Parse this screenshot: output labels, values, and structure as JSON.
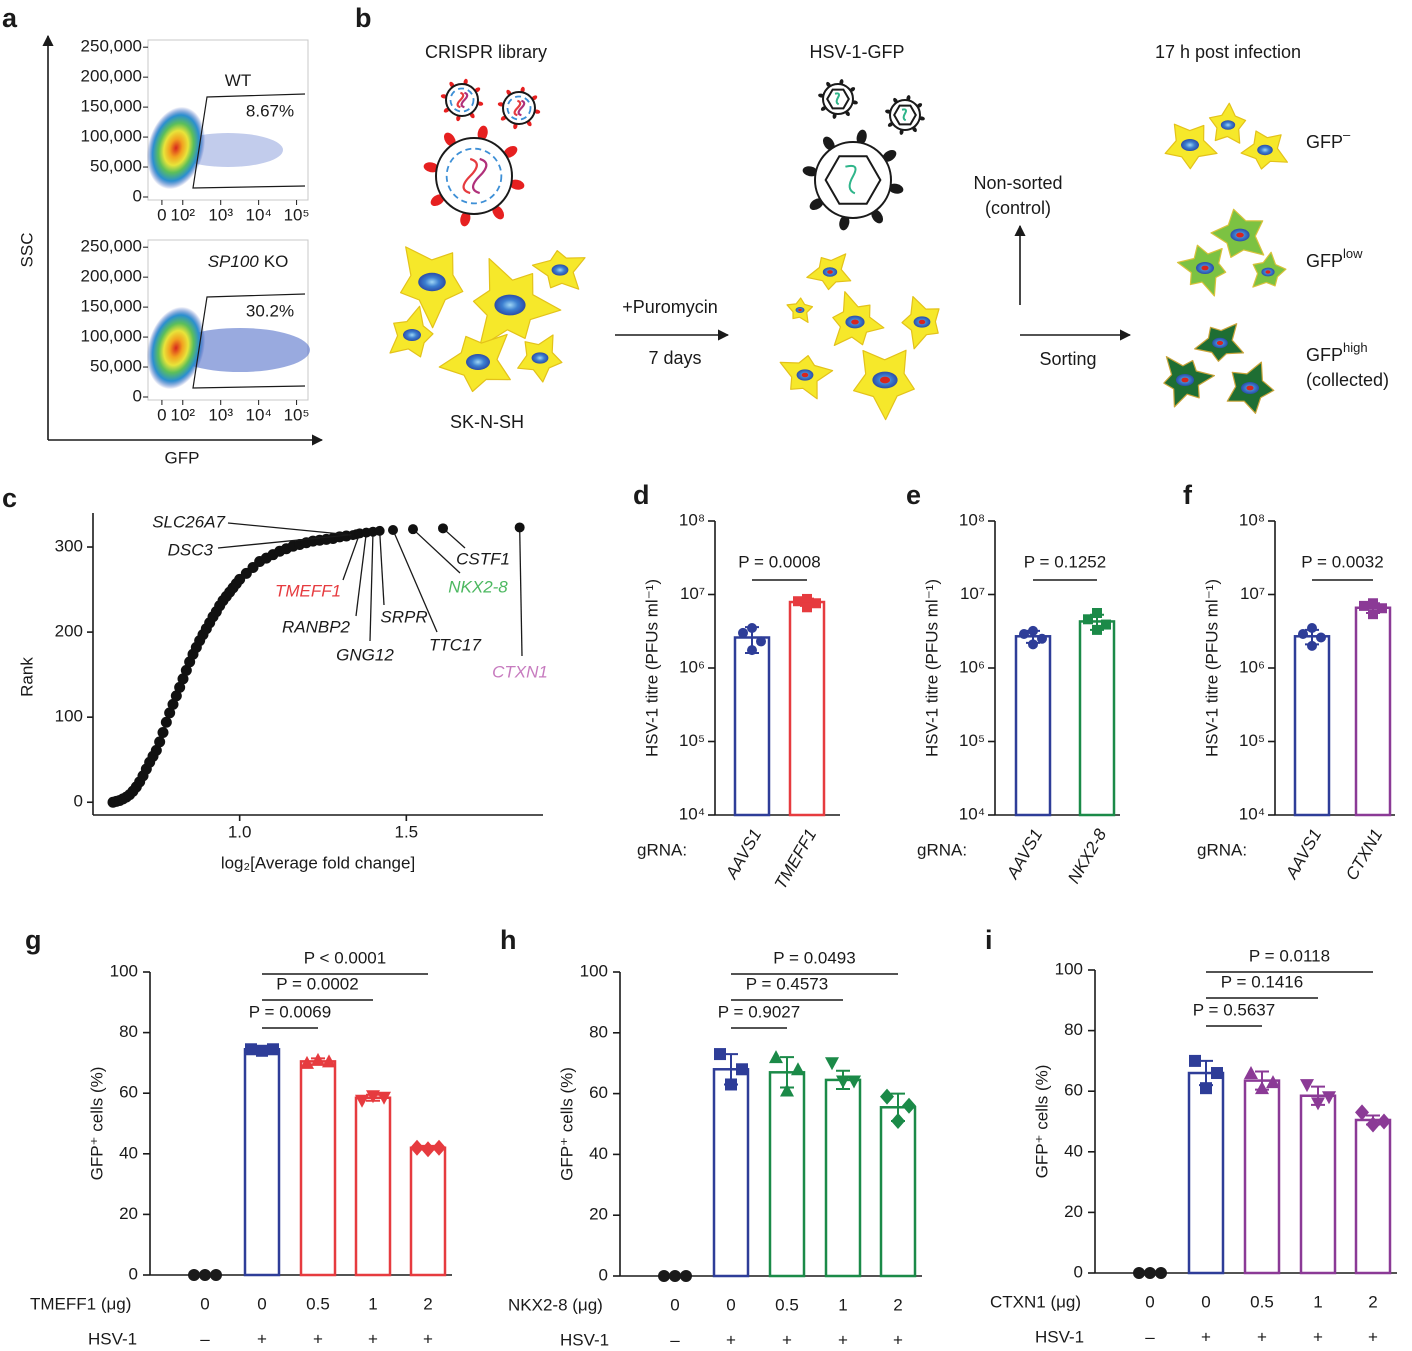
{
  "panel_labels": [
    "a",
    "b",
    "c",
    "d",
    "e",
    "f",
    "g",
    "h",
    "i"
  ],
  "schematic": {
    "steps": [
      "CRISPR library",
      "HSV-1-GFP",
      "17 h post infection"
    ],
    "cell_line": "SK-N-SH",
    "treatment": [
      "+Puromycin",
      "7 days"
    ],
    "control": [
      "Non-sorted",
      "(control)"
    ],
    "sorting": "Sorting",
    "populations": [
      {
        "base": "GFP",
        "sup": "–"
      },
      {
        "base": "GFP",
        "sup": "low"
      },
      {
        "base": "GFP",
        "sup": "high",
        "note": "(collected)"
      }
    ]
  },
  "chart_data": [
    {
      "type": "flow",
      "xlabel": "GFP",
      "ylabel": "SSC",
      "xscale": "biexponential",
      "xlim": [
        -22,
        200000
      ],
      "ylim": [
        -5000,
        262000
      ],
      "xticks": [
        0,
        {
          "value": 100,
          "label": "10²"
        },
        {
          "value": 1000,
          "label": "10³"
        },
        {
          "value": 10000,
          "label": "10⁴"
        },
        {
          "value": 100000,
          "label": "10⁵"
        }
      ],
      "yticks": [
        {
          "value": 250000,
          "label": "250,000"
        },
        {
          "value": 200000,
          "label": "200,000"
        },
        {
          "value": 150000,
          "label": "150,000"
        },
        {
          "value": 100000,
          "label": "100,000"
        },
        {
          "value": 50000,
          "label": "50,000"
        },
        0
      ],
      "plots": [
        {
          "gate_name": "WT",
          "gate_percent": "8.67%"
        },
        {
          "gate_gene": "SP100",
          "gate_name": "KO",
          "gate_percent": "30.2%"
        }
      ]
    },
    {
      "type": "rank",
      "xlabel": "log₂[Average fold change]",
      "ylabel": "Rank",
      "xlim": [
        0.56,
        1.91
      ],
      "ylim": [
        -15,
        340
      ],
      "xticks": [
        {
          "value": 1,
          "label": "1.0"
        },
        {
          "value": 1.5,
          "label": "1.5"
        }
      ],
      "yticks": [
        0,
        100,
        200,
        300
      ],
      "x": [
        0.62,
        0.63,
        0.64,
        0.65,
        0.66,
        0.67,
        0.68,
        0.69,
        0.7,
        0.71,
        0.72,
        0.73,
        0.74,
        0.75,
        0.76,
        0.77,
        0.78,
        0.79,
        0.8,
        0.81,
        0.82,
        0.83,
        0.84,
        0.85,
        0.86,
        0.87,
        0.88,
        0.89,
        0.9,
        0.91,
        0.92,
        0.93,
        0.94,
        0.95,
        0.96,
        0.97,
        0.98,
        0.99,
        1.0,
        1.02,
        1.04,
        1.06,
        1.08,
        1.1,
        1.12,
        1.14,
        1.16,
        1.18,
        1.2,
        1.22,
        1.24,
        1.26,
        1.28,
        1.3,
        1.32
      ],
      "values": [
        0,
        1,
        2,
        4,
        6,
        9,
        13,
        18,
        24,
        31,
        39,
        47,
        54,
        61,
        71,
        82,
        94,
        105,
        115,
        125,
        135,
        145,
        155,
        165,
        174,
        182,
        190,
        197,
        204,
        211,
        218,
        224,
        231,
        237,
        242,
        247,
        252,
        257,
        262,
        269,
        276,
        283,
        287,
        291,
        295,
        298,
        301,
        303,
        305,
        307,
        308,
        309,
        310,
        312,
        313
      ],
      "labeled_points": {
        "names": [
          "SLC26A7",
          "DSC3",
          "TMEFF1",
          "RANBP2",
          "GNG12",
          "SRPR",
          "TTC17",
          "NKX2-8",
          "CSTF1",
          "CTXN1"
        ],
        "x": [
          1.34,
          1.35,
          1.36,
          1.38,
          1.4,
          1.42,
          1.46,
          1.52,
          1.61,
          1.84
        ],
        "values": [
          314,
          315,
          316,
          317,
          318,
          319,
          320,
          321,
          322,
          323
        ],
        "colors": [
          "#1a1a1a",
          "#1a1a1a",
          "#e63b3f",
          "#1a1a1a",
          "#1a1a1a",
          "#1a1a1a",
          "#1a1a1a",
          "#4cb860",
          "#1a1a1a",
          "#c77bbf"
        ]
      }
    },
    {
      "type": "logbar",
      "ylabel": "HSV-1 titre (PFUs ml⁻¹)",
      "ylog": true,
      "ylim": [
        10000,
        100000000
      ],
      "yticks": [
        {
          "value": 10000,
          "label": "10⁴"
        },
        {
          "value": 100000,
          "label": "10⁵"
        },
        {
          "value": 1000000,
          "label": "10⁶"
        },
        {
          "value": 10000000,
          "label": "10⁷"
        },
        {
          "value": 100000000,
          "label": "10⁸"
        }
      ],
      "category_prefix": "gRNA:",
      "categories": [
        "AAVS1",
        "TMEFF1"
      ],
      "values": [
        2600000,
        7900000
      ],
      "errors": [
        1000000,
        900000
      ],
      "points": [
        [
          3500000,
          3000000,
          2300000,
          1750000
        ],
        [
          8700000,
          8100000,
          7600000,
          6700000
        ]
      ],
      "colors": [
        "#2e3d98",
        "#e63b3f"
      ],
      "pvalue_label": "P = 0.0008"
    },
    {
      "type": "logbar",
      "ylabel": "HSV-1 titre (PFUs ml⁻¹)",
      "ylog": true,
      "ylim": [
        10000,
        100000000
      ],
      "yticks": [
        {
          "value": 10000,
          "label": "10⁴"
        },
        {
          "value": 100000,
          "label": "10⁵"
        },
        {
          "value": 1000000,
          "label": "10⁶"
        },
        {
          "value": 10000000,
          "label": "10⁷"
        },
        {
          "value": 100000000,
          "label": "10⁸"
        }
      ],
      "category_prefix": "gRNA:",
      "categories": [
        "AAVS1",
        "NKX2-8"
      ],
      "values": [
        2700000,
        4300000
      ],
      "errors": [
        500000,
        1000000
      ],
      "points": [
        [
          3200000,
          2900000,
          2500000,
          2100000
        ],
        [
          5600000,
          4600000,
          3900000,
          3300000
        ]
      ],
      "colors": [
        "#2e3d98",
        "#1b8a48"
      ],
      "pvalue_label": "P = 0.1252"
    },
    {
      "type": "logbar",
      "ylabel": "HSV-1 titre (PFUs ml⁻¹)",
      "ylog": true,
      "ylim": [
        10000,
        100000000
      ],
      "yticks": [
        {
          "value": 10000,
          "label": "10⁴"
        },
        {
          "value": 100000,
          "label": "10⁵"
        },
        {
          "value": 1000000,
          "label": "10⁶"
        },
        {
          "value": 10000000,
          "label": "10⁷"
        },
        {
          "value": 100000000,
          "label": "10⁸"
        }
      ],
      "category_prefix": "gRNA:",
      "categories": [
        "AAVS1",
        "CTXN1"
      ],
      "values": [
        2700000,
        6600000
      ],
      "errors": [
        600000,
        1000000
      ],
      "points": [
        [
          3500000,
          2900000,
          2600000,
          2000000
        ],
        [
          7600000,
          7000000,
          6500000,
          5400000
        ]
      ],
      "colors": [
        "#2e3d98",
        "#8b3a96"
      ],
      "pvalue_label": "P = 0.0032"
    },
    {
      "type": "bar",
      "ylabel": "GFP⁺ cells (%)",
      "ylim": [
        0,
        100
      ],
      "yticks": [
        0,
        20,
        40,
        60,
        80,
        100
      ],
      "dose_label": "TMEFF1 (μg)",
      "categories": [
        "0",
        "0",
        "0.5",
        "1",
        "2"
      ],
      "infection_label": "HSV-1",
      "infection": [
        "–",
        "+",
        "+",
        "+",
        "+"
      ],
      "values": [
        0,
        74.5,
        70.5,
        58.5,
        42
      ],
      "errors": [
        0,
        0.8,
        1,
        1,
        0.6
      ],
      "points": [
        [
          0,
          0,
          0
        ],
        [
          74.5,
          74,
          74.5
        ],
        [
          70,
          71,
          70.5
        ],
        [
          57.5,
          59,
          58.5
        ],
        [
          42,
          41.5,
          42
        ]
      ],
      "colors": [
        "#1a1a1a",
        "#2e3d98",
        "#e63b3f",
        "#e63b3f",
        "#e63b3f"
      ],
      "markers": [
        "circle",
        "square",
        "triangle",
        "triangle-down",
        "diamond"
      ],
      "pvalue_labels": [
        null,
        null,
        "P = 0.0069",
        "P = 0.0002",
        "P < 0.0001"
      ]
    },
    {
      "type": "bar",
      "ylabel": "GFP⁺ cells (%)",
      "ylim": [
        0,
        100
      ],
      "yticks": [
        0,
        20,
        40,
        60,
        80,
        100
      ],
      "dose_label": "NKX2-8 (μg)",
      "categories": [
        "0",
        "0",
        "0.5",
        "1",
        "2"
      ],
      "infection_label": "HSV-1",
      "infection": [
        "–",
        "+",
        "+",
        "+",
        "+"
      ],
      "values": [
        0,
        68,
        67,
        64.5,
        55.5
      ],
      "errors": [
        0,
        5,
        5,
        3,
        4.5
      ],
      "points": [
        [
          0,
          0,
          0
        ],
        [
          73,
          63,
          68
        ],
        [
          72,
          61,
          68
        ],
        [
          70,
          64,
          64
        ],
        [
          59,
          51,
          56
        ]
      ],
      "colors": [
        "#1a1a1a",
        "#2e3d98",
        "#1b8a48",
        "#1b8a48",
        "#1b8a48"
      ],
      "markers": [
        "circle",
        "square",
        "triangle",
        "triangle-down",
        "diamond"
      ],
      "pvalue_labels": [
        null,
        null,
        "P = 0.9027",
        "P = 0.4573",
        "P = 0.0493"
      ]
    },
    {
      "type": "bar",
      "ylabel": "GFP⁺ cells (%)",
      "ylim": [
        0,
        100
      ],
      "yticks": [
        0,
        20,
        40,
        60,
        80,
        100
      ],
      "dose_label": "CTXN1 (μg)",
      "categories": [
        "0",
        "0",
        "0.5",
        "1",
        "2"
      ],
      "infection_label": "HSV-1",
      "infection": [
        "–",
        "+",
        "+",
        "+",
        "+"
      ],
      "values": [
        0,
        66,
        63.5,
        58.5,
        50.5
      ],
      "errors": [
        0,
        4,
        3,
        3,
        1.5
      ],
      "points": [
        [
          0,
          0,
          0
        ],
        [
          70,
          61,
          66
        ],
        [
          66,
          61,
          63
        ],
        [
          62,
          56,
          58
        ],
        [
          53,
          49,
          50
        ]
      ],
      "colors": [
        "#1a1a1a",
        "#2e3d98",
        "#8b3a96",
        "#8b3a96",
        "#8b3a96"
      ],
      "markers": [
        "circle",
        "square",
        "triangle",
        "triangle-down",
        "diamond"
      ],
      "pvalue_labels": [
        null,
        null,
        "P = 0.5637",
        "P = 0.1416",
        "P = 0.0118"
      ]
    }
  ]
}
